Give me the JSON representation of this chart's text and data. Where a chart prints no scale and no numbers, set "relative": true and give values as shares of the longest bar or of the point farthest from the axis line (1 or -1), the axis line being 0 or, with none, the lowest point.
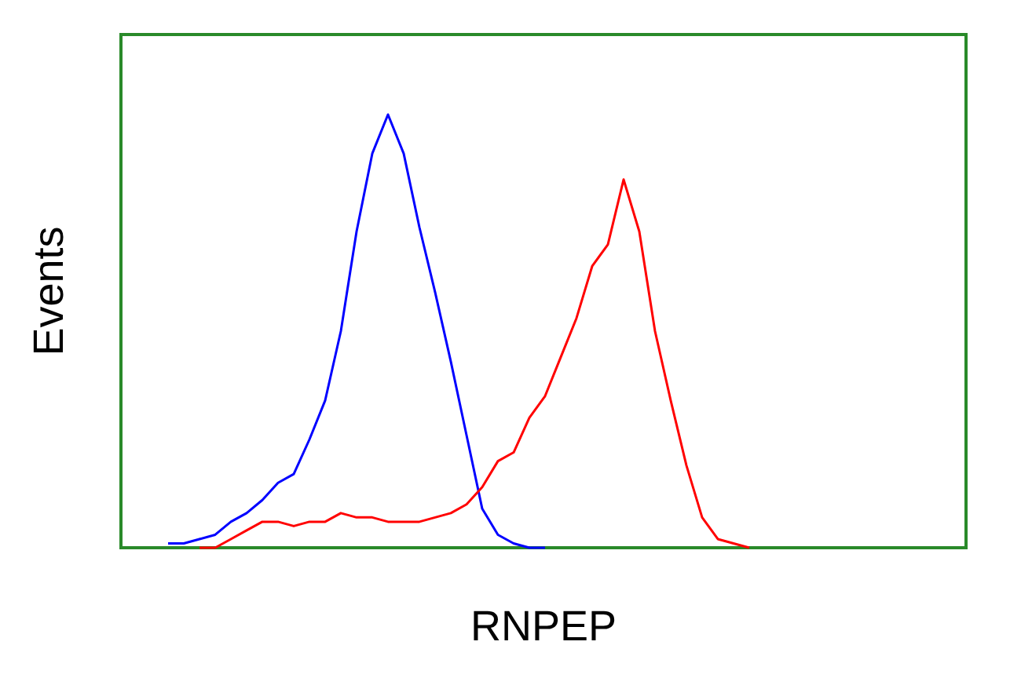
{
  "chart_data": {
    "type": "line",
    "xlabel": "RNPEP",
    "ylabel": "Events",
    "relative": true,
    "grid": false,
    "marker": "none",
    "line_style": "solid",
    "categories": [
      null,
      null,
      null,
      null,
      null,
      null,
      null,
      null,
      null,
      null,
      null,
      null,
      null,
      null,
      null,
      null,
      null,
      null,
      null,
      null,
      null,
      null,
      null,
      null,
      null,
      null,
      null,
      null,
      null,
      null,
      null,
      null,
      null,
      null,
      null,
      null,
      null,
      null,
      null,
      null,
      null,
      null,
      null,
      null,
      null,
      null,
      null,
      null,
      null,
      null,
      null,
      null,
      null,
      null
    ],
    "series": [
      {
        "color": "#0000ff",
        "values": [
          null,
          null,
          null,
          0.01,
          0.01,
          0.02,
          0.03,
          0.06,
          0.08,
          0.11,
          0.15,
          0.17,
          0.25,
          0.34,
          0.5,
          0.73,
          0.91,
          1,
          0.91,
          0.74,
          0.59,
          0.43,
          0.26,
          0.09,
          0.03,
          0.01,
          0,
          0,
          null,
          null,
          null,
          null,
          null,
          null,
          null,
          null,
          null,
          null,
          null,
          null,
          null,
          null,
          null,
          null,
          null,
          null,
          null,
          null,
          null,
          null,
          null,
          null,
          null,
          null
        ]
      },
      {
        "color": "#ff0000",
        "values": [
          null,
          null,
          null,
          null,
          null,
          0,
          0,
          0.02,
          0.04,
          0.06,
          0.06,
          0.05,
          0.06,
          0.06,
          0.08,
          0.07,
          0.07,
          0.06,
          0.06,
          0.06,
          0.07,
          0.08,
          0.1,
          0.14,
          0.2,
          0.22,
          0.3,
          0.35,
          0.44,
          0.53,
          0.65,
          0.7,
          0.85,
          0.73,
          0.5,
          0.34,
          0.19,
          0.07,
          0.02,
          0.01,
          0,
          null,
          null,
          null,
          null,
          null,
          null,
          null,
          null,
          null,
          null,
          null,
          null,
          null
        ]
      }
    ]
  }
}
